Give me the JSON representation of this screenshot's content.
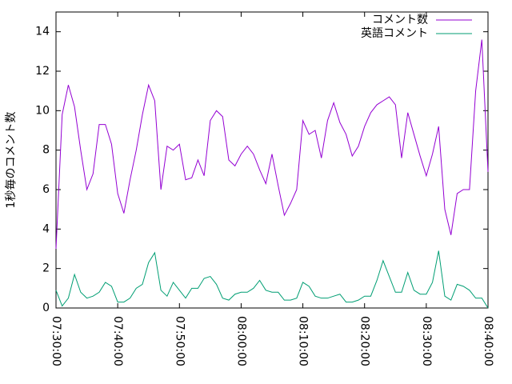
{
  "chart_data": {
    "type": "line",
    "ylabel": "1秒毎のコメント数",
    "x": [
      450,
      451,
      452,
      453,
      454,
      455,
      456,
      457,
      458,
      459,
      460,
      461,
      462,
      463,
      464,
      465,
      466,
      467,
      468,
      469,
      470,
      471,
      472,
      473,
      474,
      475,
      476,
      477,
      478,
      479,
      480,
      481,
      482,
      483,
      484,
      485,
      486,
      487,
      488,
      489,
      490,
      491,
      492,
      493,
      494,
      495,
      496,
      497,
      498,
      499,
      500,
      501,
      502,
      503,
      504,
      505,
      506,
      507,
      508,
      509,
      510,
      511,
      512,
      513,
      514,
      515,
      516,
      517,
      518,
      519,
      520
    ],
    "series": [
      {
        "name": "コメント数",
        "color": "#9400d3",
        "values": [
          3,
          9.8,
          11.3,
          10.2,
          8.0,
          6.0,
          6.8,
          9.3,
          9.3,
          8.3,
          5.8,
          4.8,
          6.5,
          8.0,
          9.8,
          11.3,
          10.5,
          6.0,
          8.2,
          8.0,
          8.3,
          6.5,
          6.6,
          7.5,
          6.7,
          9.5,
          10.0,
          9.7,
          7.5,
          7.2,
          7.8,
          8.2,
          7.8,
          7.0,
          6.3,
          7.8,
          6.2,
          4.7,
          5.3,
          6.0,
          9.5,
          8.8,
          9.0,
          7.6,
          9.5,
          10.4,
          9.4,
          8.8,
          7.7,
          8.2,
          9.2,
          9.9,
          10.3,
          10.5,
          10.7,
          10.3,
          7.6,
          9.9,
          8.8,
          7.7,
          6.7,
          7.8,
          9.2,
          5.0,
          3.7,
          5.8,
          6.0,
          6.0,
          11.0,
          13.6,
          6.9
        ]
      },
      {
        "name": "英語コメント",
        "color": "#009e73",
        "values": [
          0.9,
          0.1,
          0.5,
          1.7,
          0.8,
          0.5,
          0.6,
          0.8,
          1.3,
          1.1,
          0.3,
          0.3,
          0.5,
          1.0,
          1.2,
          2.3,
          2.8,
          0.9,
          0.6,
          1.3,
          0.9,
          0.5,
          1.0,
          1.0,
          1.5,
          1.6,
          1.2,
          0.5,
          0.4,
          0.7,
          0.8,
          0.8,
          1.0,
          1.4,
          0.9,
          0.8,
          0.8,
          0.4,
          0.4,
          0.5,
          1.3,
          1.1,
          0.6,
          0.5,
          0.5,
          0.6,
          0.7,
          0.3,
          0.3,
          0.4,
          0.6,
          0.6,
          1.4,
          2.4,
          1.6,
          0.8,
          0.8,
          1.8,
          0.9,
          0.7,
          0.7,
          1.3,
          2.9,
          0.6,
          0.4,
          1.2,
          1.1,
          0.9,
          0.5,
          0.5,
          0.0
        ]
      }
    ],
    "xlim": [
      450,
      520
    ],
    "xticks": [
      {
        "value": 450,
        "label": "07:30:00"
      },
      {
        "value": 460,
        "label": "07:40:00"
      },
      {
        "value": 470,
        "label": "07:50:00"
      },
      {
        "value": 480,
        "label": "08:00:00"
      },
      {
        "value": 490,
        "label": "08:10:00"
      },
      {
        "value": 500,
        "label": "08:20:00"
      },
      {
        "value": 510,
        "label": "08:30:00"
      },
      {
        "value": 520,
        "label": "08:40:00"
      }
    ],
    "ylim": [
      0,
      15
    ],
    "yticks": [
      0,
      2,
      4,
      6,
      8,
      10,
      12,
      14
    ],
    "legend": "top-right"
  }
}
